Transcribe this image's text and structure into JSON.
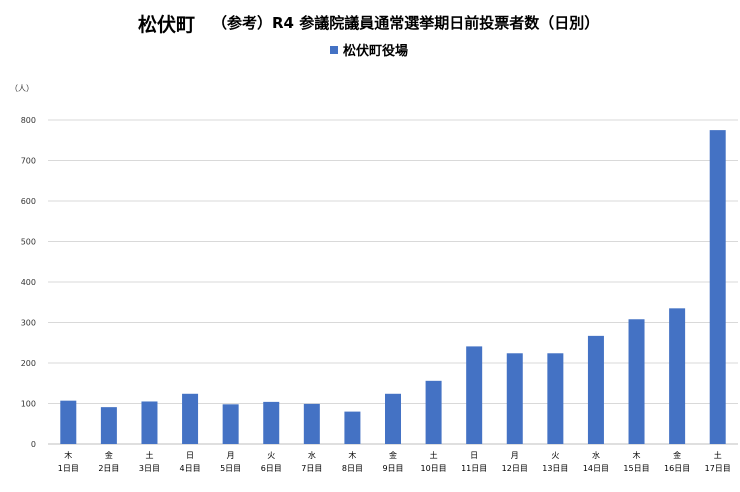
{
  "title": {
    "municipality": "松伏町",
    "subtitle": "（参考）R4 参議院議員通常選挙期日前投票者数（日別）"
  },
  "legend": {
    "label": "松伏町役場"
  },
  "unit_label": "（人）",
  "colors": {
    "bar": "#4472C4",
    "grid": "#d9d9d9",
    "axis": "#bfbfbf"
  },
  "chart_data": {
    "type": "bar",
    "title": "松伏町 （参考）R4 参議院議員通常選挙期日前投票者数（日別）",
    "categories": [
      [
        "木",
        "1日目"
      ],
      [
        "金",
        "2日目"
      ],
      [
        "土",
        "3日目"
      ],
      [
        "日",
        "4日目"
      ],
      [
        "月",
        "5日目"
      ],
      [
        "火",
        "6日目"
      ],
      [
        "水",
        "7日目"
      ],
      [
        "木",
        "8日目"
      ],
      [
        "金",
        "9日目"
      ],
      [
        "土",
        "10日目"
      ],
      [
        "日",
        "11日目"
      ],
      [
        "月",
        "12日目"
      ],
      [
        "火",
        "13日目"
      ],
      [
        "水",
        "14日目"
      ],
      [
        "木",
        "15日目"
      ],
      [
        "金",
        "16日目"
      ],
      [
        "土",
        "17日目"
      ]
    ],
    "series": [
      {
        "name": "松伏町役場",
        "values": [
          107,
          91,
          105,
          124,
          98,
          104,
          99,
          80,
          124,
          156,
          241,
          224,
          224,
          267,
          308,
          335,
          775
        ]
      }
    ],
    "ylabel": "（人）",
    "ylim": [
      0,
      800
    ],
    "yticks": [
      0,
      100,
      200,
      300,
      400,
      500,
      600,
      700,
      800
    ],
    "grid": true,
    "legend_position": "top-center"
  }
}
